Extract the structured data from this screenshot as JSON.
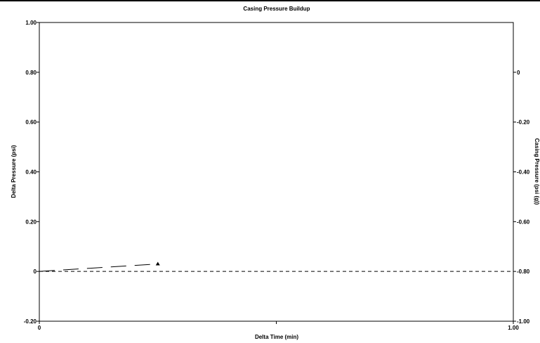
{
  "chart_data": {
    "type": "line",
    "title": "Casing Pressure Buildup",
    "xlabel": "Delta Time (min)",
    "ylabel": "Delta Pressure (psi)",
    "y2label": "Casing Pressure (psi (g))",
    "xlim": [
      0,
      1.0
    ],
    "ylim": [
      -0.2,
      1.0
    ],
    "y2lim": [
      -1.0,
      0.2
    ],
    "x_ticks": [
      {
        "v": 0,
        "label": "0"
      },
      {
        "v": 0.5,
        "label": ""
      },
      {
        "v": 1.0,
        "label": "1.00"
      }
    ],
    "y_ticks": [
      {
        "v": -0.2,
        "label": "-0.20"
      },
      {
        "v": 0,
        "label": "0"
      },
      {
        "v": 0.2,
        "label": "0.20"
      },
      {
        "v": 0.4,
        "label": "0.40"
      },
      {
        "v": 0.6,
        "label": "0.60"
      },
      {
        "v": 0.8,
        "label": "0.80"
      },
      {
        "v": 1.0,
        "label": "1.00"
      }
    ],
    "y2_ticks": [
      {
        "v": -1.0,
        "label": "-1.00"
      },
      {
        "v": -0.8,
        "label": "-0.80"
      },
      {
        "v": -0.6,
        "label": "-0.60"
      },
      {
        "v": -0.4,
        "label": "-0.40"
      },
      {
        "v": -0.2,
        "label": "-0.20"
      },
      {
        "v": 0,
        "label": "0"
      }
    ],
    "series": [
      {
        "axis": "left",
        "style": "long-dash",
        "color": "#000000",
        "marker": "triangle",
        "x": [
          0,
          0.25
        ],
        "y": [
          0,
          0.03
        ]
      },
      {
        "axis": "right",
        "style": "dash",
        "color": "#000000",
        "marker": "none",
        "x": [
          0,
          1.0
        ],
        "y": [
          -0.8,
          -0.8
        ]
      }
    ],
    "grid": false,
    "legend": "none"
  }
}
